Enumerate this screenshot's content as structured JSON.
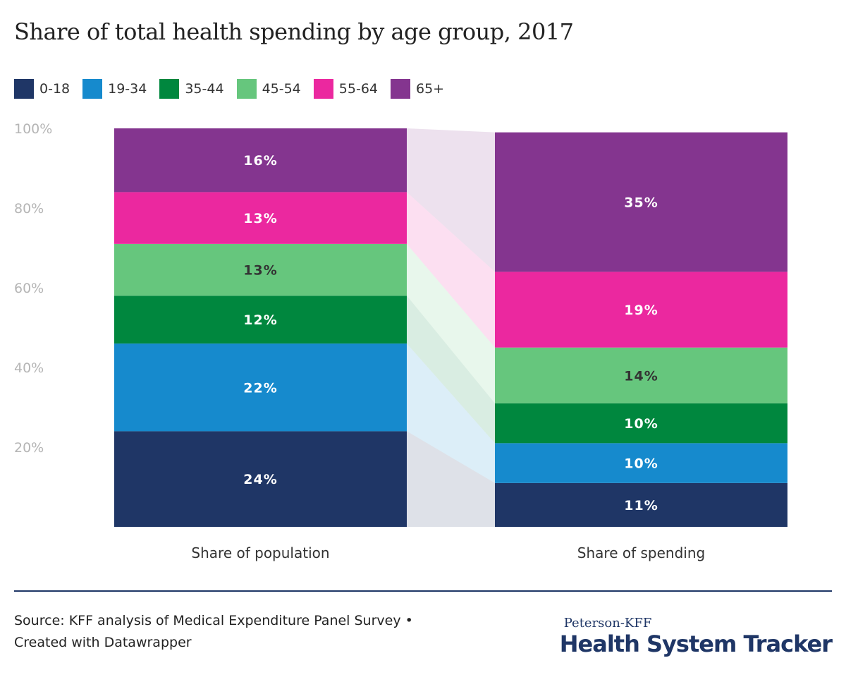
{
  "title": "Share of total health spending by age group, 2017",
  "legend": [
    {
      "label": "0-18",
      "color": "#1f3666"
    },
    {
      "label": "19-34",
      "color": "#168acd"
    },
    {
      "label": "35-44",
      "color": "#00873e"
    },
    {
      "label": "45-54",
      "color": "#66c67d"
    },
    {
      "label": "55-64",
      "color": "#eb289f"
    },
    {
      "label": "65+",
      "color": "#84358f"
    }
  ],
  "footer": {
    "source_line1": "Source: KFF analysis of Medical Expenditure Panel Survey •",
    "source_line2": "Created with Datawrapper",
    "logo_top": "Peterson-KFF",
    "logo_main": "Health System Tracker"
  },
  "chart_data": {
    "type": "bar",
    "stacked": true,
    "categories": [
      "Share of population",
      "Share of spending"
    ],
    "series": [
      {
        "name": "0-18",
        "values": [
          24,
          11
        ],
        "labels": [
          "24%",
          "11%"
        ]
      },
      {
        "name": "19-34",
        "values": [
          22,
          10
        ],
        "labels": [
          "22%",
          "10%"
        ]
      },
      {
        "name": "35-44",
        "values": [
          12,
          10
        ],
        "labels": [
          "12%",
          "10%"
        ]
      },
      {
        "name": "45-54",
        "values": [
          13,
          14
        ],
        "labels": [
          "13%",
          "14%"
        ]
      },
      {
        "name": "55-64",
        "values": [
          13,
          19
        ],
        "labels": [
          "13%",
          "19%"
        ]
      },
      {
        "name": "65+",
        "values": [
          16,
          35
        ],
        "labels": [
          "16%",
          "35%"
        ]
      }
    ],
    "yticks": [
      "100%",
      "80%",
      "60%",
      "40%",
      "20%"
    ],
    "ylim": [
      0,
      100
    ]
  }
}
